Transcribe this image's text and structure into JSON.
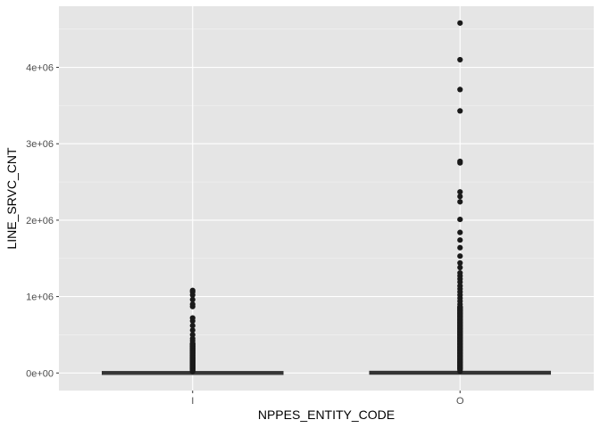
{
  "chart_data": {
    "type": "boxplot",
    "title": "",
    "xlabel": "NPPES_ENTITY_CODE",
    "ylabel": "LINE_SRVC_CNT",
    "categories": [
      "I",
      "O"
    ],
    "ylim": [
      -230000,
      4800000
    ],
    "y_ticks": [
      {
        "value": 0,
        "label": "0e+00"
      },
      {
        "value": 1000000,
        "label": "1e+06"
      },
      {
        "value": 2000000,
        "label": "2e+06"
      },
      {
        "value": 3000000,
        "label": "3e+06"
      },
      {
        "value": 4000000,
        "label": "4e+06"
      }
    ],
    "boxes": [
      {
        "category": "I",
        "q1": 0,
        "median": 2000,
        "q3": 6000,
        "whisker_low": 0,
        "whisker_high": 15000,
        "outlier_max": 1080000,
        "outliers": [
          1080000,
          1060000,
          1020000,
          960000,
          900000,
          870000,
          720000,
          680000,
          620000,
          560000,
          500000,
          450000,
          420000,
          380000,
          350000,
          320000,
          290000,
          260000,
          230000,
          200000,
          180000,
          160000,
          140000,
          120000,
          100000,
          85000,
          70000,
          55000,
          40000,
          28000,
          20000
        ]
      },
      {
        "category": "O",
        "q1": 0,
        "median": 3000,
        "q3": 9000,
        "whisker_low": 0,
        "whisker_high": 20000,
        "outlier_max": 4580000,
        "outliers": [
          4580000,
          4100000,
          3710000,
          3430000,
          2770000,
          2750000,
          2370000,
          2310000,
          2240000,
          2010000,
          1840000,
          1740000,
          1640000,
          1530000,
          1440000,
          1380000,
          1310000,
          1270000,
          1230000,
          1190000,
          1140000,
          1100000,
          1060000,
          1020000,
          980000,
          940000,
          900000,
          860000,
          820000,
          780000,
          740000,
          700000,
          660000,
          620000,
          580000,
          540000,
          500000,
          460000,
          420000,
          380000,
          340000,
          300000,
          260000,
          220000,
          180000,
          140000,
          100000,
          70000,
          45000,
          25000
        ]
      }
    ],
    "grid": true,
    "legend": "none",
    "colors": {
      "panel_bg": "#e5e5e5",
      "grid_major": "#ffffff",
      "box": "#333333",
      "outlier": "#1a1a1a",
      "tick_text": "#4d4d4d",
      "axis_title": "#000000"
    }
  }
}
